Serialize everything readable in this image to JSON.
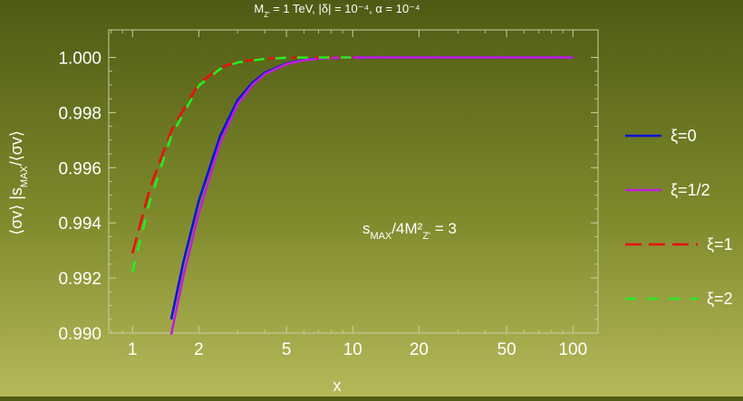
{
  "chart_data": {
    "type": "line",
    "title": "M_Z' = 1 TeV, |δ| = 10⁻⁴, α = 10⁻⁴",
    "xlabel": "x",
    "ylabel": "⟨σv⟩ |s_MAX/⟨σv⟩",
    "x_scale": "log",
    "xlim": [
      0.78,
      130
    ],
    "ylim": [
      0.99,
      1.001
    ],
    "x_ticks": [
      1,
      2,
      5,
      10,
      20,
      50,
      100
    ],
    "y_ticks": [
      0.99,
      0.992,
      0.994,
      0.996,
      0.998,
      1.0
    ],
    "y_tick_labels": [
      "0.990",
      "0.992",
      "0.994",
      "0.996",
      "0.998",
      "1.000"
    ],
    "annotation": "s_MAX/4M²_Z' = 3",
    "legend_position": "right",
    "series": [
      {
        "name": "ξ=0",
        "color": "#0a14d8",
        "dash": "solid",
        "x": [
          1.5,
          1.7,
          2,
          2.5,
          3,
          3.5,
          4,
          5,
          6,
          7,
          8,
          10,
          20,
          50,
          100
        ],
        "y": [
          0.9905,
          0.99255,
          0.9948,
          0.99715,
          0.99845,
          0.99908,
          0.99945,
          0.99978,
          0.99991,
          0.99996,
          0.99998,
          1.0,
          1.0,
          1.0,
          1.0
        ]
      },
      {
        "name": "ξ=1/2",
        "color": "#c020d8",
        "dash": "solid",
        "x": [
          1.5,
          1.7,
          2,
          2.5,
          3,
          3.5,
          4,
          5,
          6,
          7,
          8,
          10,
          20,
          50,
          100
        ],
        "y": [
          0.98995,
          0.99205,
          0.99435,
          0.9969,
          0.9983,
          0.999,
          0.9994,
          0.99976,
          0.9999,
          0.99996,
          0.99998,
          1.0,
          1.0,
          1.0,
          1.0
        ]
      },
      {
        "name": "ξ=1",
        "color": "#e81010",
        "dash": "long",
        "x": [
          1,
          1.2,
          1.5,
          2,
          2.5,
          3,
          4,
          5,
          7,
          10
        ],
        "y": [
          0.9929,
          0.99525,
          0.99735,
          0.99905,
          0.99962,
          0.99984,
          0.99996,
          0.99999,
          1.0,
          1.0
        ]
      },
      {
        "name": "ξ=2",
        "color": "#22ee22",
        "dash": "short",
        "x": [
          1,
          1.2,
          1.5,
          2,
          2.5,
          3,
          4,
          5,
          7,
          10
        ],
        "y": [
          0.99222,
          0.9948,
          0.99715,
          0.99898,
          0.99958,
          0.99982,
          0.99995,
          0.99999,
          1.0,
          1.0
        ]
      }
    ]
  }
}
